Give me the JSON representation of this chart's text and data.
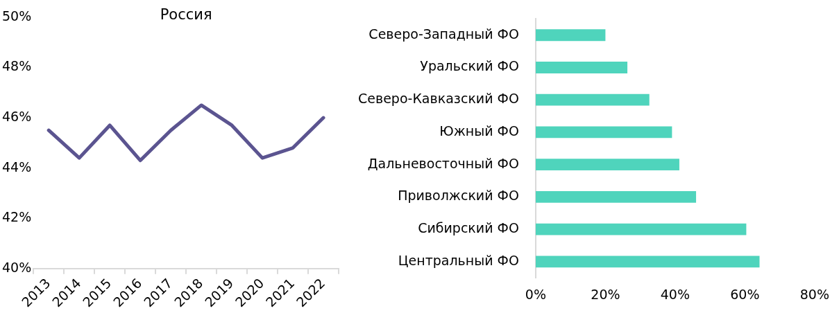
{
  "chart_data": [
    {
      "type": "line",
      "title": "Россия",
      "categories": [
        "2013",
        "2014",
        "2015",
        "2016",
        "2017",
        "2018",
        "2019",
        "2020",
        "2021",
        "2022"
      ],
      "series": [
        {
          "color": "#5b5490",
          "values": [
            45.5,
            44.4,
            45.7,
            44.3,
            45.5,
            46.5,
            45.7,
            44.4,
            44.8,
            46.0
          ]
        }
      ],
      "ylim": [
        40,
        50
      ],
      "yticks": [
        {
          "value": 40,
          "label": "40%"
        },
        {
          "value": 42,
          "label": "42%"
        },
        {
          "value": 44,
          "label": "44%"
        },
        {
          "value": 46,
          "label": "46%"
        },
        {
          "value": 48,
          "label": "48%"
        },
        {
          "value": 50,
          "label": "50%"
        }
      ],
      "marker": "none",
      "line_style": "solid",
      "grid": false,
      "legend": false
    },
    {
      "type": "bar",
      "orientation": "horizontal",
      "categories": [
        "Северо-Западный ФО",
        "Уральский ФО",
        "Северо-Кавказский ФО",
        "Южный ФО",
        "Дальневосточный ФО",
        "Приволжский ФО",
        "Сибирский ФО",
        "Центральный ФО"
      ],
      "series": [
        {
          "color": "#4fd4bc",
          "values": [
            20.0,
            26.3,
            32.6,
            39.1,
            41.2,
            46.0,
            60.4,
            64.2
          ]
        }
      ],
      "xlim": [
        0,
        80
      ],
      "xticks": [
        {
          "value": 0,
          "label": "0%"
        },
        {
          "value": 20,
          "label": "20%"
        },
        {
          "value": 40,
          "label": "40%"
        },
        {
          "value": 60,
          "label": "60%"
        },
        {
          "value": 80,
          "label": "80%"
        }
      ],
      "grid": false,
      "legend": false
    }
  ]
}
